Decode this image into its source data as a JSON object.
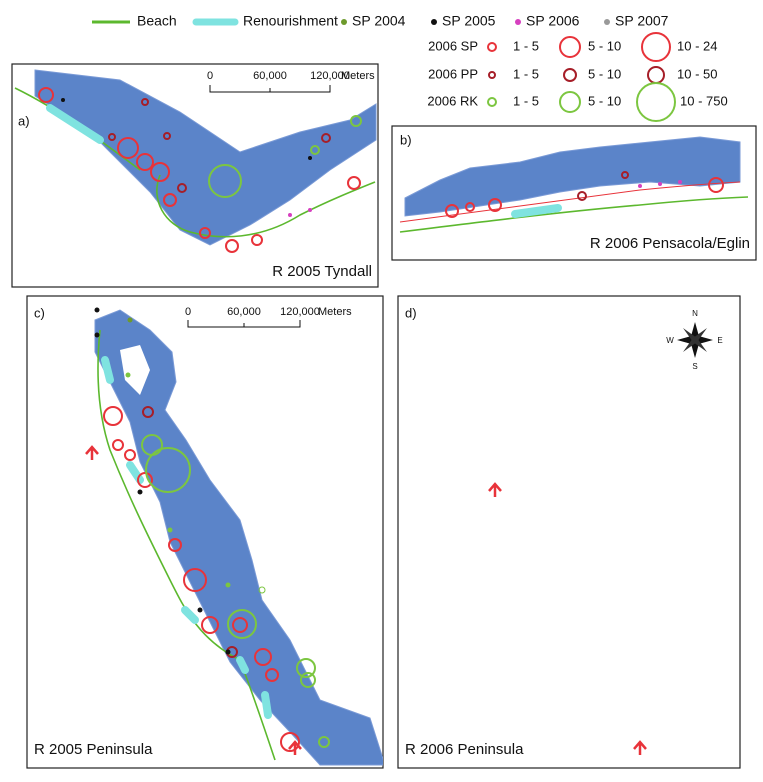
{
  "legend": {
    "beach": "Beach",
    "renourishment": "Renourishment",
    "sp2004": "SP 2004",
    "sp2005": "SP 2005",
    "sp2006": "SP 2006",
    "sp2007": "SP 2007",
    "rows": [
      {
        "label": "2006 SP",
        "ranges": [
          "1 - 5",
          "5 - 10",
          "10 - 24"
        ]
      },
      {
        "label": "2006 PP",
        "ranges": [
          "1 - 5",
          "5 - 10",
          "10 - 50"
        ]
      },
      {
        "label": "2006 RK",
        "ranges": [
          "1 - 5",
          "5 - 10",
          "10 - 750"
        ]
      }
    ]
  },
  "panels": [
    {
      "letter": "a)",
      "title": "R 2005 Tyndall",
      "scale": {
        "ticks": [
          "0",
          "60,000",
          "120,000"
        ],
        "unit": "Meters"
      }
    },
    {
      "letter": "b)",
      "title": "R 2006 Pensacola/Eglin"
    },
    {
      "letter": "c)",
      "title": "R 2005 Peninsula",
      "scale": {
        "ticks": [
          "0",
          "60,000",
          "120,000"
        ],
        "unit": "Meters"
      }
    },
    {
      "letter": "d)",
      "title": "R 2006 Peninsula"
    }
  ],
  "compass": {
    "n": "N",
    "s": "S",
    "e": "E",
    "w": "W"
  }
}
